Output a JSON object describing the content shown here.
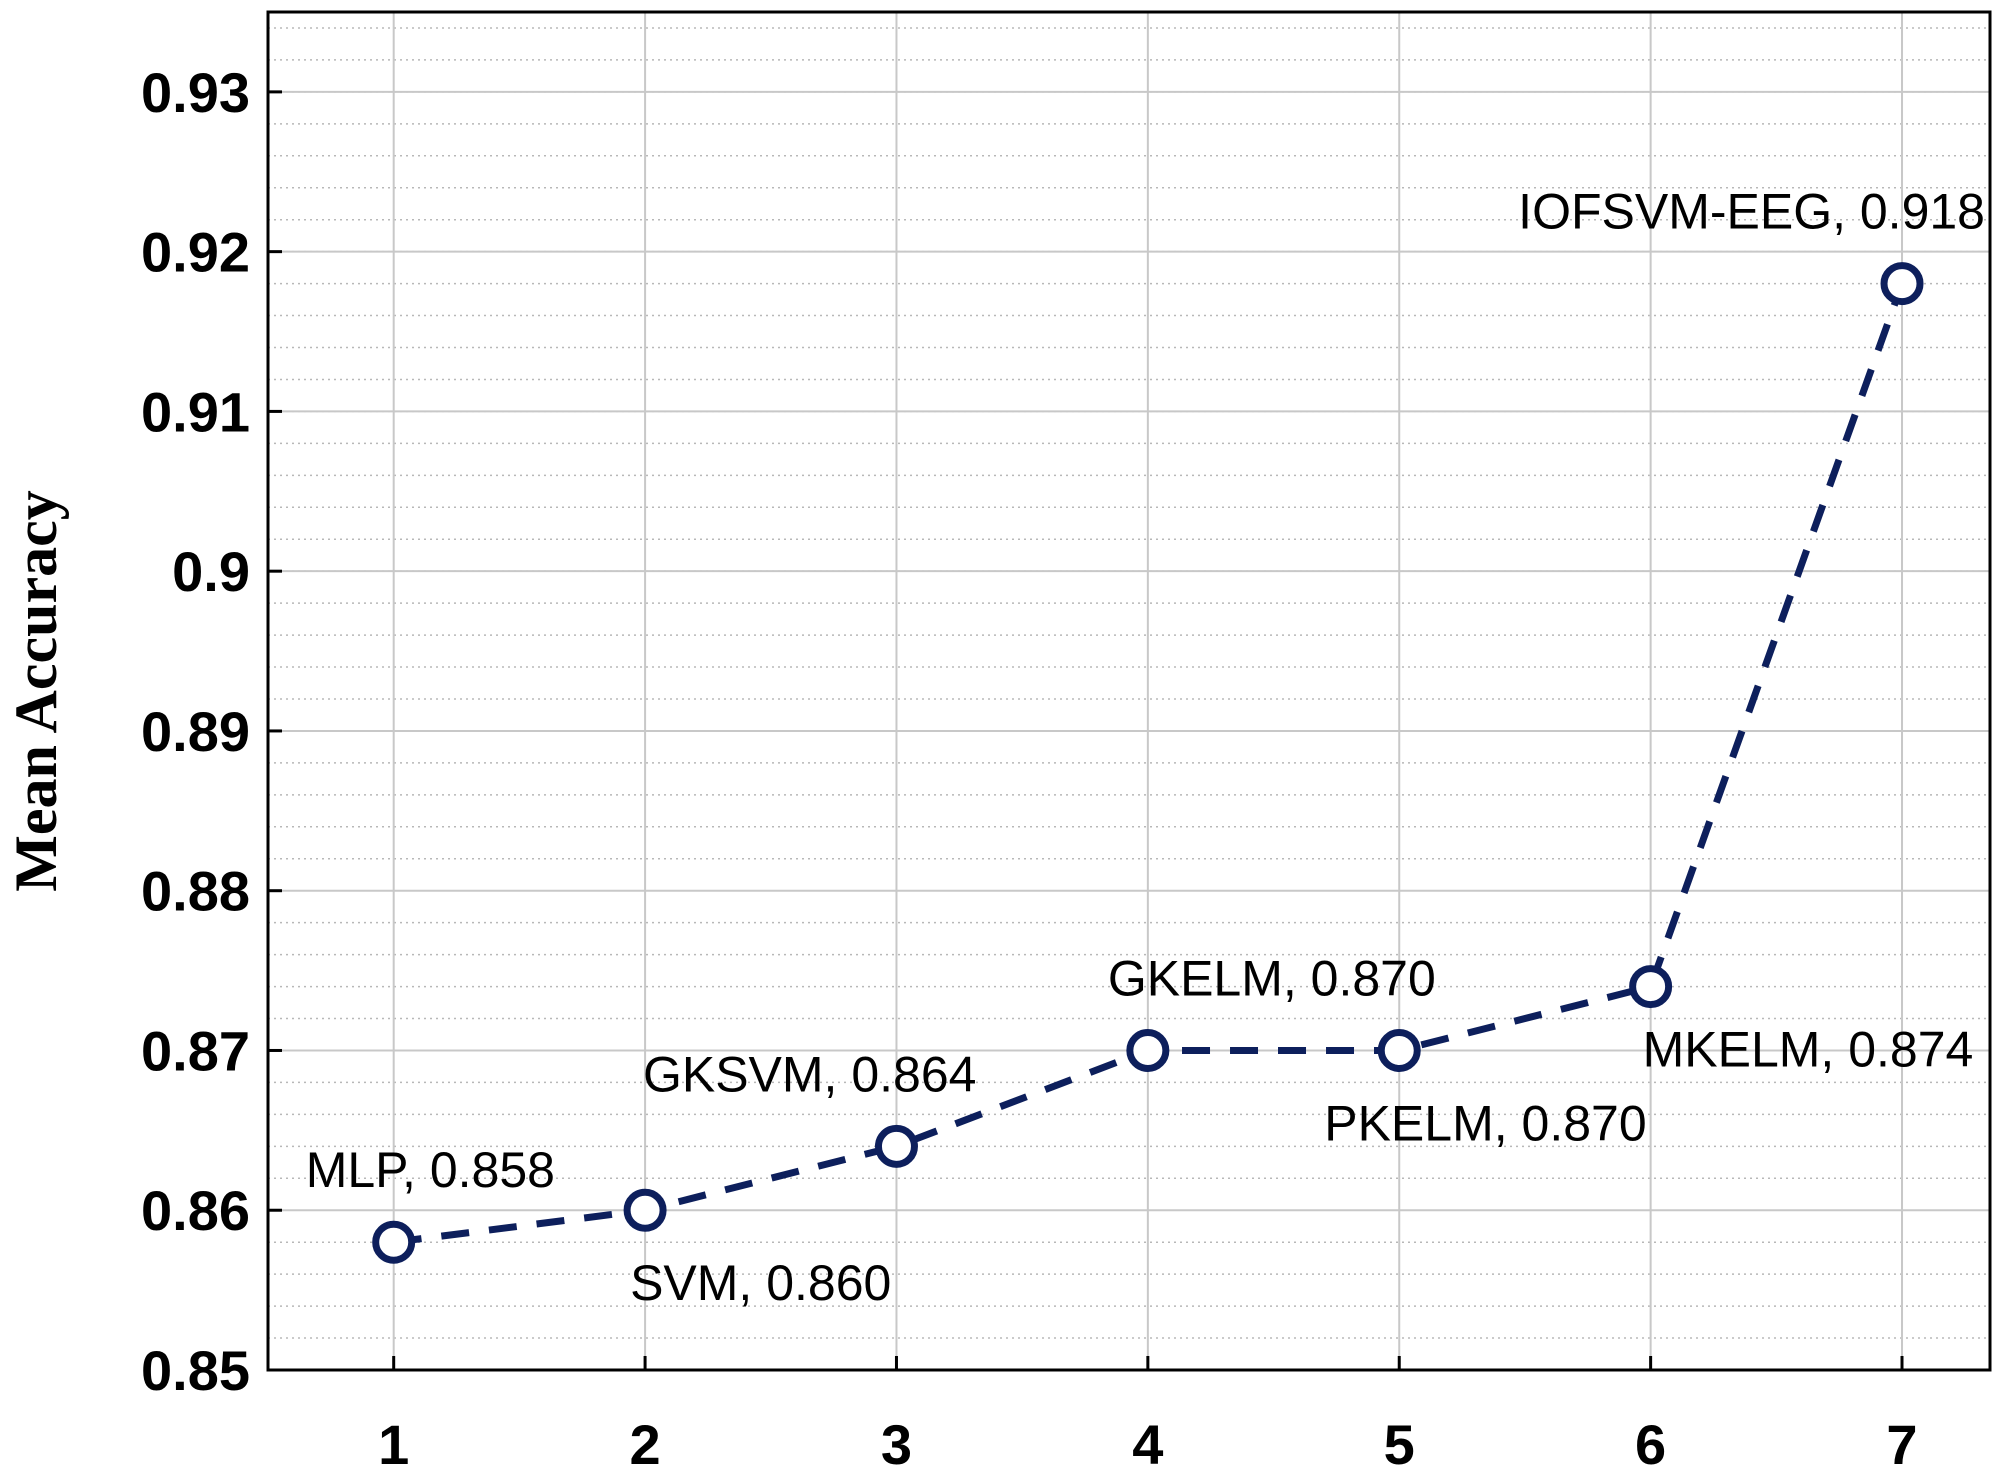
{
  "chart_data": {
    "type": "line",
    "title": "",
    "xlabel": "",
    "ylabel": "Mean Accuracy",
    "x": [
      1,
      2,
      3,
      4,
      5,
      6,
      7
    ],
    "xlim": [
      0.5,
      7.35
    ],
    "ylim": [
      0.85,
      0.935
    ],
    "x_ticks": [
      "1",
      "2",
      "3",
      "4",
      "5",
      "6",
      "7"
    ],
    "y_ticks": [
      "0.85",
      "0.86",
      "0.87",
      "0.88",
      "0.89",
      "0.9",
      "0.91",
      "0.92",
      "0.93"
    ],
    "y_tick_values": [
      0.85,
      0.86,
      0.87,
      0.88,
      0.89,
      0.9,
      0.91,
      0.92,
      0.93
    ],
    "grid": true,
    "minor_grid": true,
    "series": [
      {
        "values": [
          0.858,
          0.86,
          0.864,
          0.87,
          0.87,
          0.874,
          0.918
        ],
        "color": "#0d1f5c",
        "line_style": "dashed",
        "marker": "open-circle"
      }
    ],
    "annotations": [
      {
        "x": 1,
        "y": 0.858,
        "text": "MLP, 0.858",
        "position": "above"
      },
      {
        "x": 2,
        "y": 0.86,
        "text": "SVM, 0.860",
        "position": "below"
      },
      {
        "x": 3,
        "y": 0.864,
        "text": "GKSVM, 0.864",
        "position": "above"
      },
      {
        "x": 4,
        "y": 0.87,
        "text": "GKELM, 0.870",
        "position": "above"
      },
      {
        "x": 5,
        "y": 0.87,
        "text": "PKELM, 0.870",
        "position": "below"
      },
      {
        "x": 6,
        "y": 0.874,
        "text": "MKELM, 0.874",
        "position": "below"
      },
      {
        "x": 7,
        "y": 0.918,
        "text": "IOFSVM-EEG, 0.918",
        "position": "above"
      }
    ]
  }
}
